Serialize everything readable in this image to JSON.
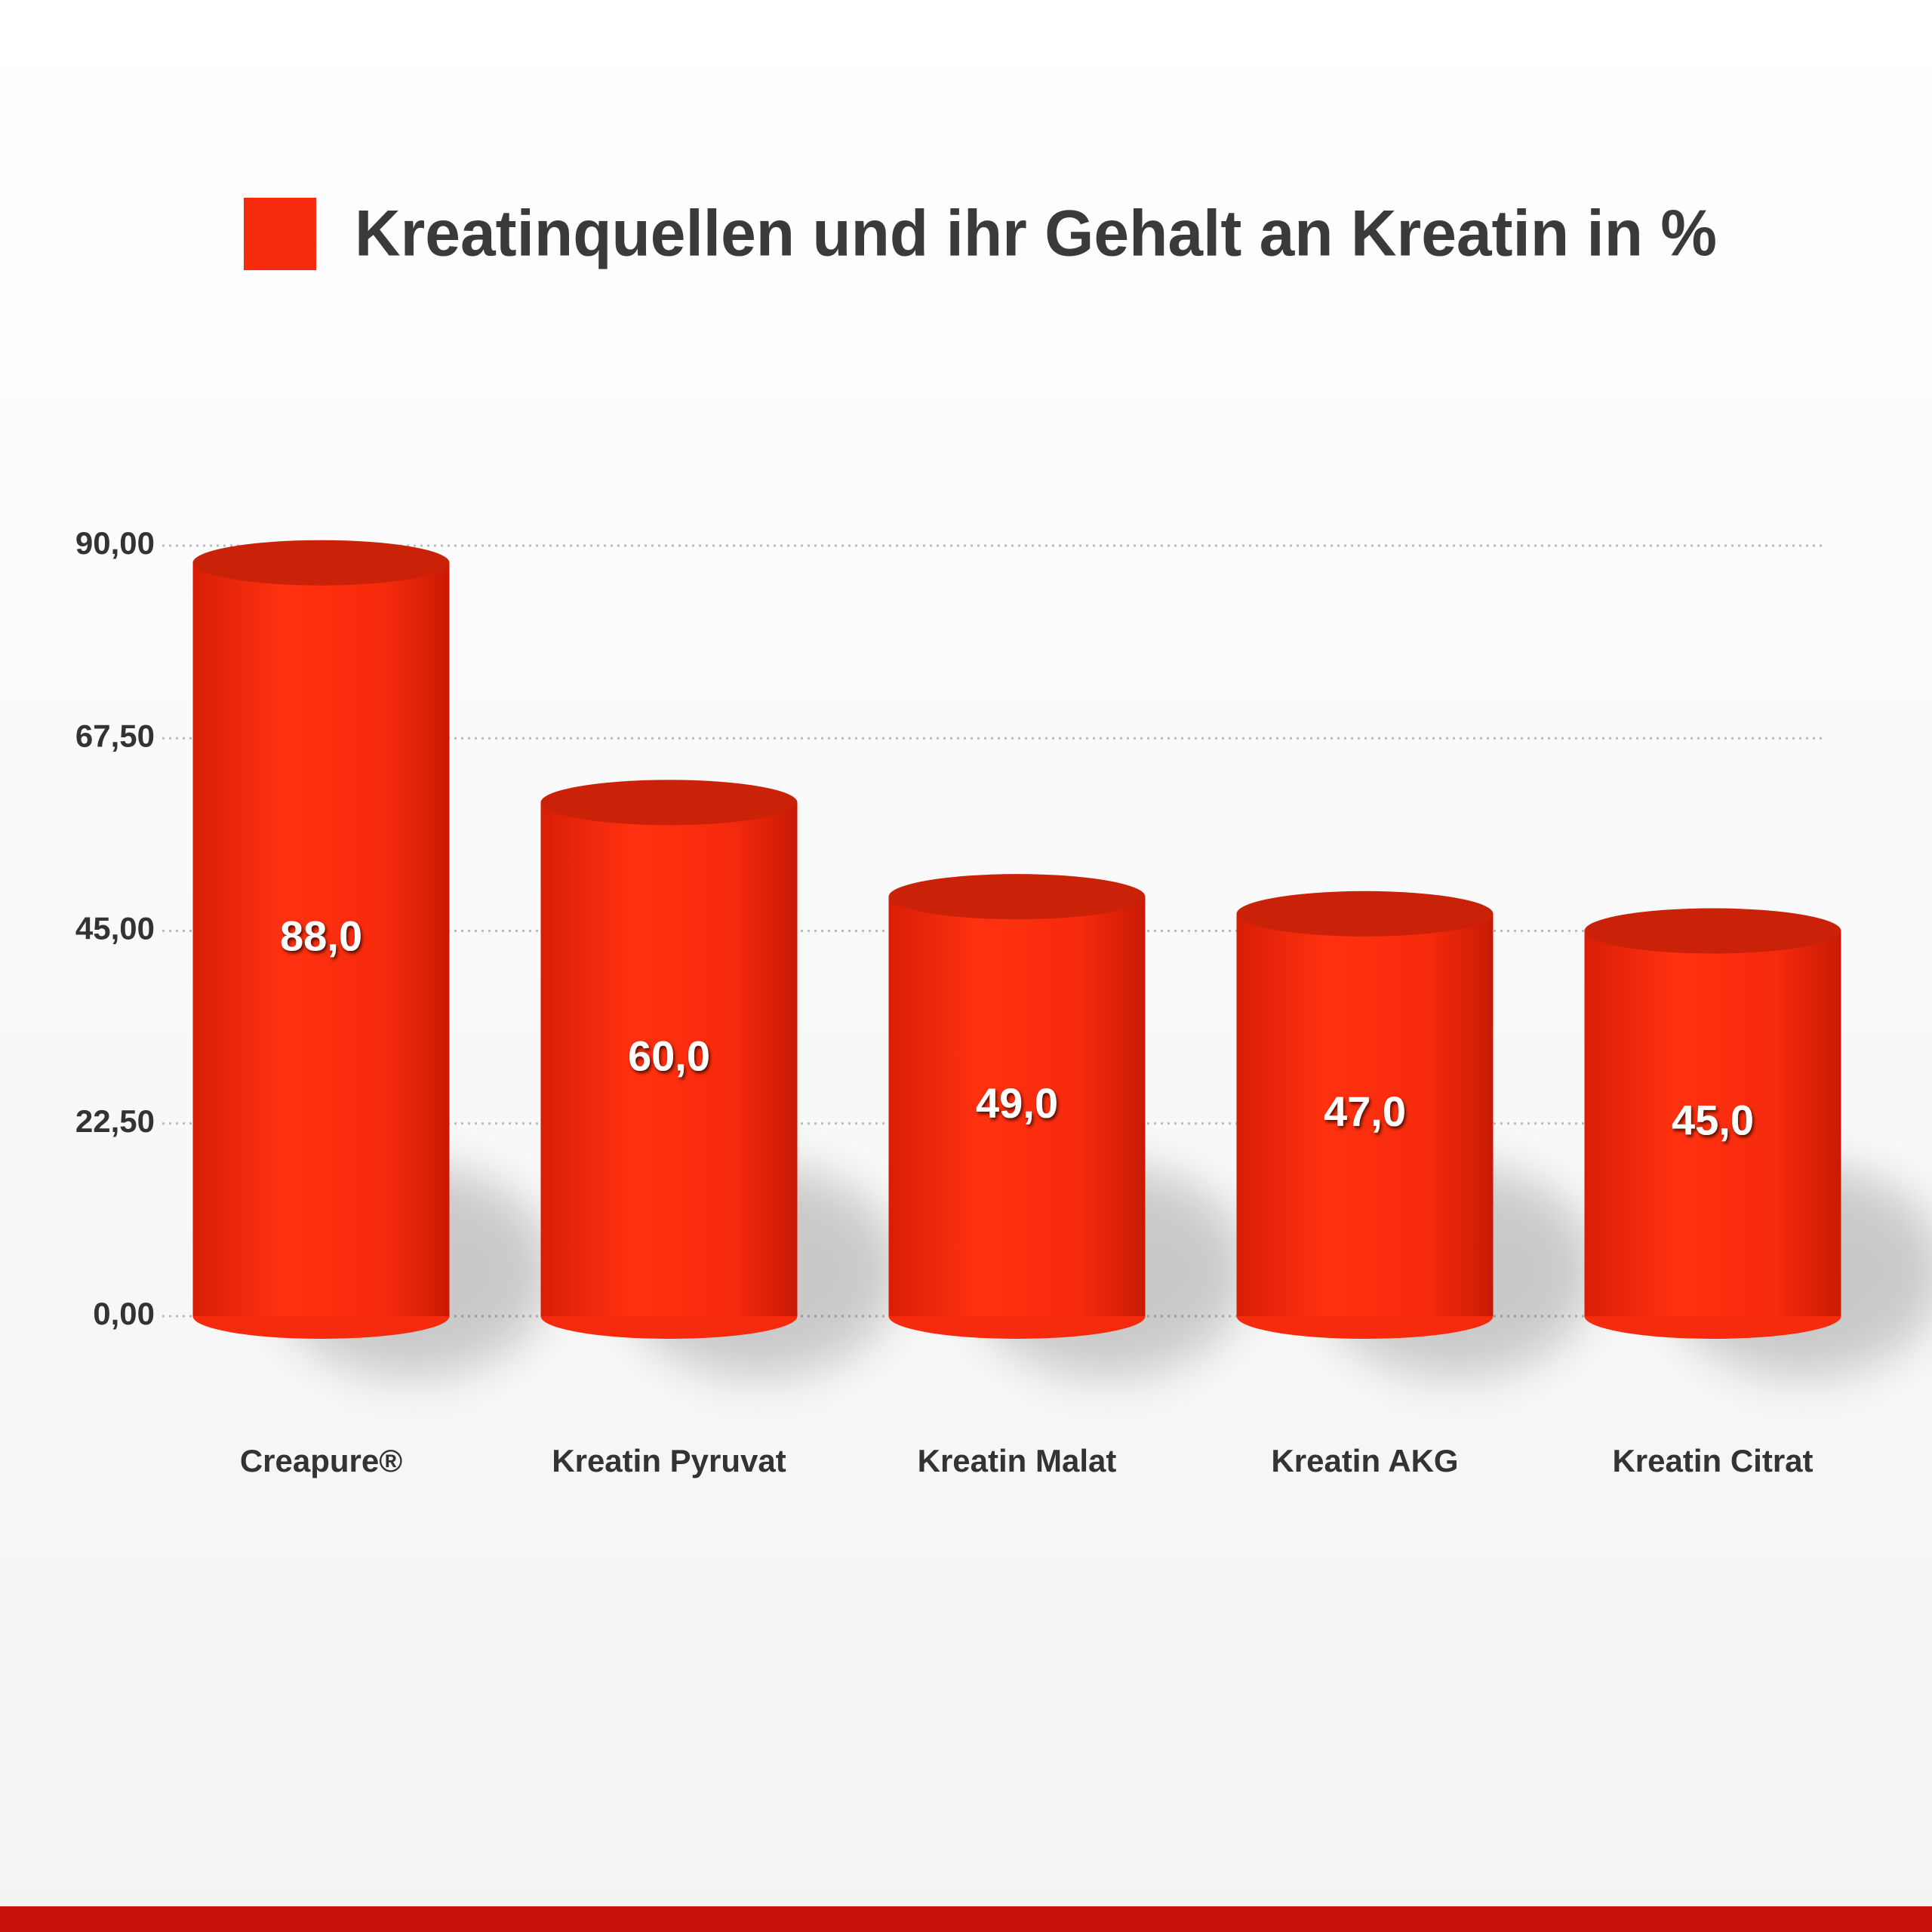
{
  "chart_data": {
    "type": "bar",
    "series": [
      {
        "name": "Kreatinquellen und ihr Gehalt an Kreatin in %",
        "color": "#f62a0c",
        "values": [
          88,
          60,
          49,
          47,
          45
        ],
        "value_labels": [
          "88,0",
          "60,0",
          "49,0",
          "47,0",
          "45,0"
        ]
      }
    ],
    "categories": [
      "Creapure®",
      "Kreatin Pyruvat",
      "Kreatin Malat",
      "Kreatin AKG",
      "Kreatin Citrat"
    ],
    "ylim": [
      0,
      90
    ],
    "yticks": [
      {
        "value": 0,
        "label": "0,00"
      },
      {
        "value": 22.5,
        "label": "22,50"
      },
      {
        "value": 45,
        "label": "45,00"
      },
      {
        "value": 67.5,
        "label": "67,50"
      },
      {
        "value": 90,
        "label": "90,00"
      }
    ],
    "grid": true,
    "legend": "top"
  }
}
